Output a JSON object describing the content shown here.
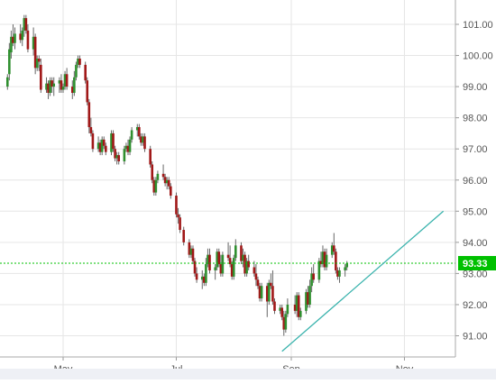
{
  "chart_data": {
    "type": "candlestick",
    "title": "",
    "xlabel": "",
    "ylabel": "",
    "x_ticks": [
      "May",
      "Jul",
      "Sep",
      "Nov"
    ],
    "y_ticks": [
      "91.00",
      "92.00",
      "93.00",
      "94.00",
      "95.00",
      "96.00",
      "97.00",
      "98.00",
      "99.00",
      "100.00",
      "101.00"
    ],
    "ylim": [
      90.2,
      101.6
    ],
    "grid": true,
    "colors": {
      "up": "#2f8f2f",
      "down": "#a01818",
      "trendline": "#3ab3ad",
      "last_price": "#00c000",
      "grid": "#e6e6e6"
    },
    "last_price": {
      "value": 93.33,
      "label": "93.33"
    },
    "trendline": {
      "from": {
        "x": "Aug 27",
        "y": 90.5
      },
      "to": {
        "x": "Nov 22",
        "y": 95.0
      }
    },
    "candles": [
      {
        "x": "Apr 01",
        "o": 99.0,
        "h": 99.4,
        "l": 98.9,
        "c": 99.3
      },
      {
        "x": "Apr 02",
        "o": 99.4,
        "h": 100.4,
        "l": 99.2,
        "c": 100.2
      },
      {
        "x": "Apr 03",
        "o": 100.1,
        "h": 100.8,
        "l": 99.9,
        "c": 100.6
      },
      {
        "x": "Apr 04",
        "o": 100.6,
        "h": 101.0,
        "l": 100.3,
        "c": 100.4
      },
      {
        "x": "Apr 05",
        "o": 100.4,
        "h": 100.9,
        "l": 100.2,
        "c": 100.7
      },
      {
        "x": "Apr 08",
        "o": 100.7,
        "h": 101.0,
        "l": 100.4,
        "c": 100.5
      },
      {
        "x": "Apr 09",
        "o": 100.5,
        "h": 100.9,
        "l": 100.3,
        "c": 100.8
      },
      {
        "x": "Apr 10",
        "o": 100.8,
        "h": 101.3,
        "l": 100.6,
        "c": 101.2
      },
      {
        "x": "Apr 11",
        "o": 101.2,
        "h": 101.3,
        "l": 100.7,
        "c": 100.8
      },
      {
        "x": "Apr 12",
        "o": 100.8,
        "h": 101.0,
        "l": 100.1,
        "c": 100.2
      },
      {
        "x": "Apr 15",
        "o": 100.2,
        "h": 100.9,
        "l": 100.0,
        "c": 100.6
      },
      {
        "x": "Apr 16",
        "o": 100.6,
        "h": 100.7,
        "l": 99.4,
        "c": 99.6
      },
      {
        "x": "Apr 17",
        "o": 99.6,
        "h": 100.0,
        "l": 99.5,
        "c": 99.9
      },
      {
        "x": "Apr 18",
        "o": 99.9,
        "h": 100.0,
        "l": 99.5,
        "c": 99.8
      },
      {
        "x": "Apr 19",
        "o": 99.7,
        "h": 99.9,
        "l": 98.8,
        "c": 98.9
      },
      {
        "x": "Apr 22",
        "o": 98.9,
        "h": 99.3,
        "l": 98.8,
        "c": 99.1
      },
      {
        "x": "Apr 23",
        "o": 99.1,
        "h": 99.2,
        "l": 98.6,
        "c": 98.8
      },
      {
        "x": "Apr 24",
        "o": 98.8,
        "h": 99.3,
        "l": 98.7,
        "c": 99.2
      },
      {
        "x": "Apr 25",
        "o": 99.2,
        "h": 99.3,
        "l": 98.8,
        "c": 99.0
      },
      {
        "x": "Apr 26",
        "o": 99.0,
        "h": 99.3,
        "l": 98.7,
        "c": 99.1
      },
      {
        "x": "Apr 29",
        "o": 99.1,
        "h": 99.3,
        "l": 98.8,
        "c": 99.2
      },
      {
        "x": "Apr 30",
        "o": 99.2,
        "h": 99.4,
        "l": 98.8,
        "c": 98.9
      },
      {
        "x": "May 01",
        "o": 98.9,
        "h": 99.1,
        "l": 98.8,
        "c": 99.0
      },
      {
        "x": "May 02",
        "o": 99.0,
        "h": 99.5,
        "l": 98.9,
        "c": 99.4
      },
      {
        "x": "May 03",
        "o": 99.4,
        "h": 99.6,
        "l": 98.9,
        "c": 99.0
      },
      {
        "x": "May 06",
        "o": 99.0,
        "h": 99.2,
        "l": 98.6,
        "c": 98.8
      },
      {
        "x": "May 07",
        "o": 98.8,
        "h": 99.5,
        "l": 98.7,
        "c": 99.3
      },
      {
        "x": "May 08",
        "o": 99.3,
        "h": 99.8,
        "l": 99.2,
        "c": 99.7
      },
      {
        "x": "May 09",
        "o": 99.7,
        "h": 100.0,
        "l": 99.6,
        "c": 99.9
      },
      {
        "x": "May 10",
        "o": 99.9,
        "h": 100.0,
        "l": 99.6,
        "c": 99.7
      },
      {
        "x": "May 13",
        "o": 99.7,
        "h": 99.8,
        "l": 99.1,
        "c": 99.2
      },
      {
        "x": "May 14",
        "o": 99.2,
        "h": 99.3,
        "l": 98.4,
        "c": 98.5
      },
      {
        "x": "May 15",
        "o": 98.5,
        "h": 98.6,
        "l": 97.5,
        "c": 97.7
      },
      {
        "x": "May 16",
        "o": 97.7,
        "h": 98.0,
        "l": 97.4,
        "c": 97.5
      },
      {
        "x": "May 17",
        "o": 97.5,
        "h": 97.6,
        "l": 96.9,
        "c": 97.0
      },
      {
        "x": "May 20",
        "o": 97.0,
        "h": 97.4,
        "l": 96.9,
        "c": 97.2
      },
      {
        "x": "May 21",
        "o": 97.2,
        "h": 97.3,
        "l": 96.8,
        "c": 96.9
      },
      {
        "x": "May 22",
        "o": 96.9,
        "h": 97.4,
        "l": 96.8,
        "c": 97.3
      },
      {
        "x": "May 23",
        "o": 97.3,
        "h": 97.4,
        "l": 97.0,
        "c": 97.1
      },
      {
        "x": "May 24",
        "o": 97.1,
        "h": 97.2,
        "l": 96.8,
        "c": 96.9
      },
      {
        "x": "May 27",
        "o": 96.9,
        "h": 97.6,
        "l": 96.8,
        "c": 97.5
      },
      {
        "x": "May 28",
        "o": 97.5,
        "h": 97.6,
        "l": 96.9,
        "c": 97.0
      },
      {
        "x": "May 29",
        "o": 97.0,
        "h": 97.1,
        "l": 96.6,
        "c": 96.7
      },
      {
        "x": "May 30",
        "o": 96.7,
        "h": 96.9,
        "l": 96.5,
        "c": 96.8
      },
      {
        "x": "May 31",
        "o": 96.8,
        "h": 96.9,
        "l": 96.5,
        "c": 96.6
      },
      {
        "x": "Jun 03",
        "o": 96.6,
        "h": 97.1,
        "l": 96.5,
        "c": 97.0
      },
      {
        "x": "Jun 04",
        "o": 97.0,
        "h": 97.2,
        "l": 96.9,
        "c": 97.1
      },
      {
        "x": "Jun 05",
        "o": 97.1,
        "h": 97.3,
        "l": 96.8,
        "c": 96.9
      },
      {
        "x": "Jun 06",
        "o": 96.9,
        "h": 97.4,
        "l": 96.8,
        "c": 97.3
      },
      {
        "x": "Jun 07",
        "o": 97.3,
        "h": 97.7,
        "l": 97.2,
        "c": 97.6
      },
      {
        "x": "Jun 10",
        "o": 97.6,
        "h": 97.8,
        "l": 97.4,
        "c": 97.7
      },
      {
        "x": "Jun 11",
        "o": 97.7,
        "h": 97.8,
        "l": 97.3,
        "c": 97.4
      },
      {
        "x": "Jun 12",
        "o": 97.4,
        "h": 97.5,
        "l": 97.1,
        "c": 97.2
      },
      {
        "x": "Jun 13",
        "o": 97.2,
        "h": 97.5,
        "l": 97.1,
        "c": 97.4
      },
      {
        "x": "Jun 14",
        "o": 97.4,
        "h": 97.5,
        "l": 96.9,
        "c": 97.0
      },
      {
        "x": "Jun 17",
        "o": 97.0,
        "h": 97.1,
        "l": 96.4,
        "c": 96.5
      },
      {
        "x": "Jun 18",
        "o": 96.5,
        "h": 96.6,
        "l": 95.9,
        "c": 96.0
      },
      {
        "x": "Jun 19",
        "o": 96.0,
        "h": 96.1,
        "l": 95.5,
        "c": 95.6
      },
      {
        "x": "Jun 20",
        "o": 95.6,
        "h": 96.1,
        "l": 95.5,
        "c": 96.0
      },
      {
        "x": "Jun 21",
        "o": 96.0,
        "h": 96.3,
        "l": 95.9,
        "c": 96.2
      },
      {
        "x": "Jun 24",
        "o": 96.2,
        "h": 96.5,
        "l": 96.0,
        "c": 96.1
      },
      {
        "x": "Jun 25",
        "o": 96.1,
        "h": 96.2,
        "l": 95.8,
        "c": 95.9
      },
      {
        "x": "Jun 26",
        "o": 95.9,
        "h": 96.1,
        "l": 95.7,
        "c": 96.0
      },
      {
        "x": "Jun 27",
        "o": 96.0,
        "h": 96.1,
        "l": 95.7,
        "c": 95.8
      },
      {
        "x": "Jun 28",
        "o": 95.8,
        "h": 95.9,
        "l": 95.4,
        "c": 95.5
      },
      {
        "x": "Jul 01",
        "o": 95.5,
        "h": 95.6,
        "l": 94.8,
        "c": 94.9
      },
      {
        "x": "Jul 02",
        "o": 94.9,
        "h": 95.1,
        "l": 94.6,
        "c": 94.8
      },
      {
        "x": "Jul 03",
        "o": 94.8,
        "h": 94.9,
        "l": 94.3,
        "c": 94.4
      },
      {
        "x": "Jul 05",
        "o": 94.4,
        "h": 94.5,
        "l": 93.9,
        "c": 94.0
      },
      {
        "x": "Jul 08",
        "o": 94.0,
        "h": 94.1,
        "l": 93.5,
        "c": 93.6
      },
      {
        "x": "Jul 09",
        "o": 93.6,
        "h": 93.9,
        "l": 93.5,
        "c": 93.8
      },
      {
        "x": "Jul 10",
        "o": 93.8,
        "h": 93.9,
        "l": 93.3,
        "c": 93.4
      },
      {
        "x": "Jul 11",
        "o": 93.4,
        "h": 93.5,
        "l": 92.9,
        "c": 93.0
      },
      {
        "x": "Jul 12",
        "o": 93.0,
        "h": 93.2,
        "l": 92.7,
        "c": 92.8
      },
      {
        "x": "Jul 15",
        "o": 92.8,
        "h": 93.1,
        "l": 92.5,
        "c": 92.9
      },
      {
        "x": "Jul 16",
        "o": 92.9,
        "h": 93.0,
        "l": 92.6,
        "c": 92.7
      },
      {
        "x": "Jul 17",
        "o": 92.7,
        "h": 93.5,
        "l": 92.6,
        "c": 93.3
      },
      {
        "x": "Jul 18",
        "o": 93.3,
        "h": 93.8,
        "l": 93.2,
        "c": 93.6
      },
      {
        "x": "Jul 19",
        "o": 93.6,
        "h": 93.8,
        "l": 93.0,
        "c": 93.1
      },
      {
        "x": "Jul 22",
        "o": 93.1,
        "h": 93.3,
        "l": 92.8,
        "c": 93.2
      },
      {
        "x": "Jul 23",
        "o": 93.2,
        "h": 93.8,
        "l": 93.1,
        "c": 93.7
      },
      {
        "x": "Jul 24",
        "o": 93.7,
        "h": 93.8,
        "l": 93.2,
        "c": 93.3
      },
      {
        "x": "Jul 25",
        "o": 93.3,
        "h": 93.6,
        "l": 92.9,
        "c": 93.0
      },
      {
        "x": "Jul 26",
        "o": 93.0,
        "h": 93.7,
        "l": 92.9,
        "c": 93.6
      },
      {
        "x": "Jul 29",
        "o": 93.6,
        "h": 94.0,
        "l": 93.4,
        "c": 93.5
      },
      {
        "x": "Jul 30",
        "o": 93.5,
        "h": 93.9,
        "l": 93.2,
        "c": 93.3
      },
      {
        "x": "Jul 31",
        "o": 93.3,
        "h": 93.4,
        "l": 92.8,
        "c": 92.9
      },
      {
        "x": "Aug 01",
        "o": 92.9,
        "h": 93.6,
        "l": 92.8,
        "c": 93.5
      },
      {
        "x": "Aug 02",
        "o": 93.5,
        "h": 94.1,
        "l": 93.4,
        "c": 93.9
      },
      {
        "x": "Aug 05",
        "o": 93.9,
        "h": 94.0,
        "l": 93.3,
        "c": 93.4
      },
      {
        "x": "Aug 06",
        "o": 93.4,
        "h": 93.8,
        "l": 93.2,
        "c": 93.6
      },
      {
        "x": "Aug 07",
        "o": 93.6,
        "h": 93.7,
        "l": 92.9,
        "c": 93.0
      },
      {
        "x": "Aug 08",
        "o": 93.0,
        "h": 93.5,
        "l": 92.9,
        "c": 93.4
      },
      {
        "x": "Aug 09",
        "o": 93.4,
        "h": 93.6,
        "l": 93.1,
        "c": 93.2
      },
      {
        "x": "Aug 12",
        "o": 93.2,
        "h": 93.4,
        "l": 92.9,
        "c": 93.0
      },
      {
        "x": "Aug 13",
        "o": 93.0,
        "h": 93.3,
        "l": 92.6,
        "c": 92.8
      },
      {
        "x": "Aug 14",
        "o": 92.8,
        "h": 92.9,
        "l": 92.5,
        "c": 92.6
      },
      {
        "x": "Aug 15",
        "o": 92.6,
        "h": 92.7,
        "l": 92.1,
        "c": 92.2
      },
      {
        "x": "Aug 16",
        "o": 92.2,
        "h": 92.7,
        "l": 92.1,
        "c": 92.6
      },
      {
        "x": "Aug 19",
        "o": 92.6,
        "h": 92.7,
        "l": 91.6,
        "c": 92.1
      },
      {
        "x": "Aug 20",
        "o": 92.1,
        "h": 92.8,
        "l": 92.0,
        "c": 92.7
      },
      {
        "x": "Aug 21",
        "o": 92.7,
        "h": 93.0,
        "l": 92.5,
        "c": 92.6
      },
      {
        "x": "Aug 22",
        "o": 92.6,
        "h": 93.1,
        "l": 92.0,
        "c": 92.1
      },
      {
        "x": "Aug 23",
        "o": 92.1,
        "h": 92.2,
        "l": 91.7,
        "c": 91.8
      },
      {
        "x": "Aug 26",
        "o": 91.8,
        "h": 92.0,
        "l": 91.7,
        "c": 91.9
      },
      {
        "x": "Aug 27",
        "o": 91.9,
        "h": 92.0,
        "l": 91.5,
        "c": 91.6
      },
      {
        "x": "Aug 28",
        "o": 91.6,
        "h": 91.8,
        "l": 91.0,
        "c": 91.2
      },
      {
        "x": "Aug 29",
        "o": 91.2,
        "h": 91.8,
        "l": 91.1,
        "c": 91.7
      },
      {
        "x": "Aug 30",
        "o": 91.7,
        "h": 92.2,
        "l": 91.6,
        "c": 92.0
      },
      {
        "x": "Sep 03",
        "o": 92.0,
        "h": 92.3,
        "l": 91.7,
        "c": 91.8
      },
      {
        "x": "Sep 04",
        "o": 91.8,
        "h": 92.4,
        "l": 91.6,
        "c": 92.3
      },
      {
        "x": "Sep 05",
        "o": 92.3,
        "h": 92.4,
        "l": 91.5,
        "c": 91.6
      },
      {
        "x": "Sep 06",
        "o": 91.6,
        "h": 91.9,
        "l": 91.5,
        "c": 91.8
      },
      {
        "x": "Sep 09",
        "o": 91.8,
        "h": 92.5,
        "l": 91.7,
        "c": 92.4
      },
      {
        "x": "Sep 10",
        "o": 92.4,
        "h": 92.6,
        "l": 91.9,
        "c": 92.0
      },
      {
        "x": "Sep 11",
        "o": 92.0,
        "h": 92.8,
        "l": 91.9,
        "c": 92.6
      },
      {
        "x": "Sep 12",
        "o": 92.6,
        "h": 93.2,
        "l": 92.4,
        "c": 93.0
      },
      {
        "x": "Sep 13",
        "o": 93.0,
        "h": 93.3,
        "l": 92.7,
        "c": 92.8
      },
      {
        "x": "Sep 16",
        "o": 92.8,
        "h": 93.5,
        "l": 92.7,
        "c": 93.4
      },
      {
        "x": "Sep 17",
        "o": 93.4,
        "h": 93.7,
        "l": 93.2,
        "c": 93.3
      },
      {
        "x": "Sep 18",
        "o": 93.3,
        "h": 93.9,
        "l": 93.2,
        "c": 93.7
      },
      {
        "x": "Sep 19",
        "o": 93.7,
        "h": 93.8,
        "l": 93.1,
        "c": 93.2
      },
      {
        "x": "Sep 20",
        "o": 93.2,
        "h": 93.8,
        "l": 93.1,
        "c": 93.6
      },
      {
        "x": "Sep 23",
        "o": 93.6,
        "h": 94.0,
        "l": 93.5,
        "c": 93.9
      },
      {
        "x": "Sep 24",
        "o": 93.9,
        "h": 94.3,
        "l": 93.6,
        "c": 93.7
      },
      {
        "x": "Sep 25",
        "o": 93.7,
        "h": 93.8,
        "l": 93.0,
        "c": 93.1
      },
      {
        "x": "Sep 26",
        "o": 93.1,
        "h": 93.2,
        "l": 92.8,
        "c": 92.9
      },
      {
        "x": "Sep 27",
        "o": 92.9,
        "h": 93.2,
        "l": 92.7,
        "c": 93.1
      },
      {
        "x": "Sep 30",
        "o": 93.1,
        "h": 93.3,
        "l": 92.9,
        "c": 93.2
      },
      {
        "x": "Oct 01",
        "o": 93.2,
        "h": 93.4,
        "l": 93.1,
        "c": 93.33
      }
    ]
  }
}
